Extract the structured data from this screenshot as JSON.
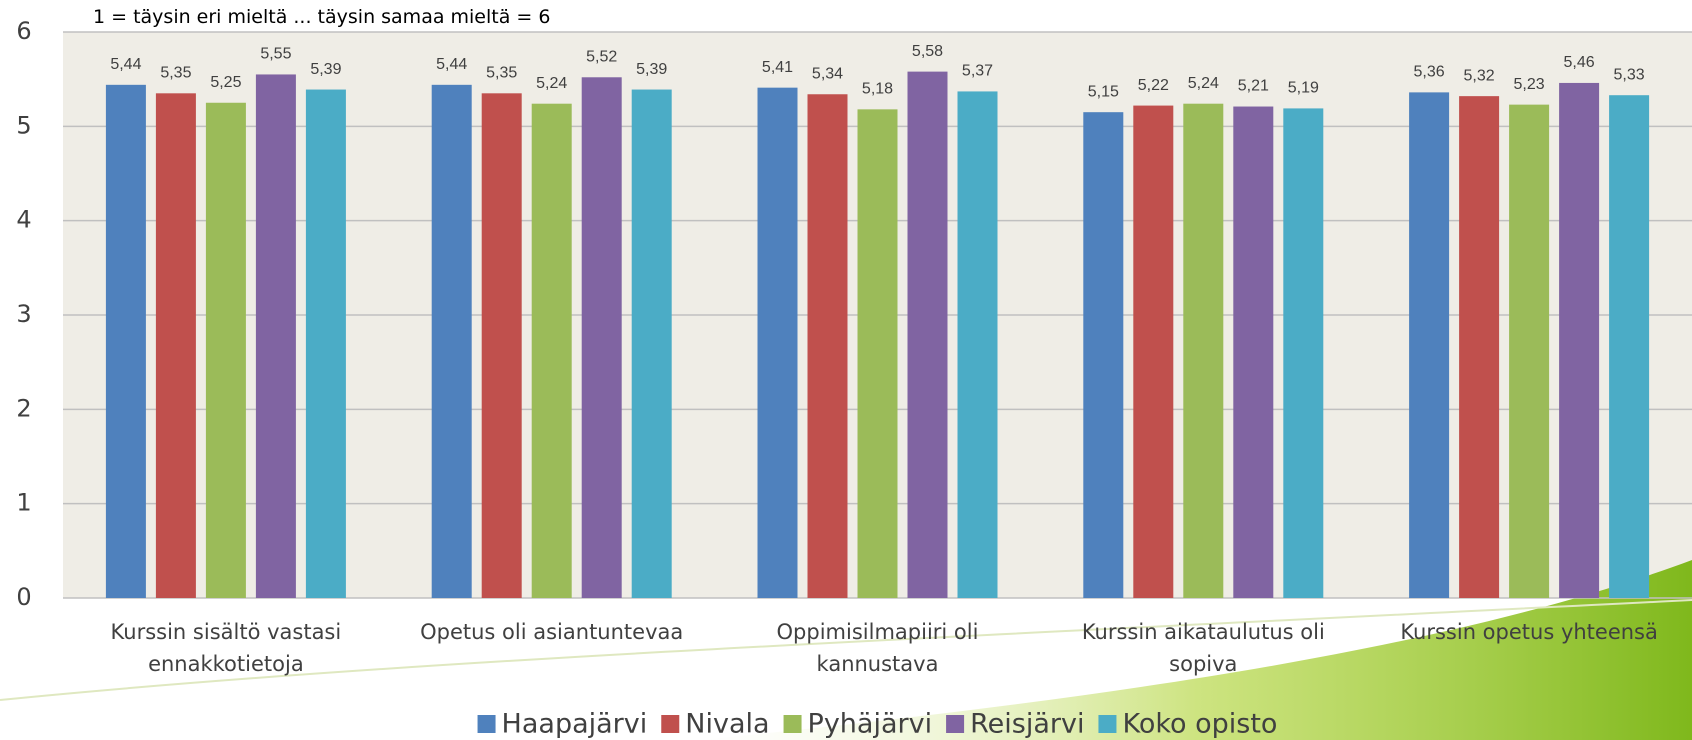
{
  "chart_data": {
    "type": "bar",
    "subtitle": "1 = täysin eri mieltä ... täysin samaa mieltä = 6",
    "categories": [
      "Kurssin sisältö vastasi ennakkotietoja",
      "Opetus oli asiantuntevaa",
      "Oppimisilmapiiri oli kannustava",
      "Kurssin aikataulutus oli sopiva",
      "Kurssin opetus yhteensä"
    ],
    "series": [
      {
        "name": "Haapajärvi",
        "color": "#4f81bd",
        "values": [
          5.44,
          5.44,
          5.41,
          5.15,
          5.36
        ],
        "value_labels": [
          "5,44",
          "5,44",
          "5,41",
          "5,15",
          "5,36"
        ]
      },
      {
        "name": "Nivala",
        "color": "#c0504d",
        "values": [
          5.35,
          5.35,
          5.34,
          5.22,
          5.32
        ],
        "value_labels": [
          "5,35",
          "5,35",
          "5,34",
          "5,22",
          "5,32"
        ]
      },
      {
        "name": "Pyhäjärvi",
        "color": "#9bbb59",
        "values": [
          5.25,
          5.24,
          5.18,
          5.24,
          5.23
        ],
        "value_labels": [
          "5,25",
          "5,24",
          "5,18",
          "5,24",
          "5,23"
        ]
      },
      {
        "name": "Reisjärvi",
        "color": "#8064a2",
        "values": [
          5.55,
          5.52,
          5.58,
          5.21,
          5.46
        ],
        "value_labels": [
          "5,55",
          "5,52",
          "5,58",
          "5,21",
          "5,46"
        ]
      },
      {
        "name": "Koko opisto",
        "color": "#4bacc6",
        "values": [
          5.39,
          5.39,
          5.37,
          5.19,
          5.33
        ],
        "value_labels": [
          "5,39",
          "5,39",
          "5,37",
          "5,19",
          "5,33"
        ]
      }
    ],
    "ylim": [
      0,
      6
    ],
    "yticks": [
      0,
      1,
      2,
      3,
      4,
      5,
      6
    ],
    "grid": true,
    "legend": "bottom"
  }
}
